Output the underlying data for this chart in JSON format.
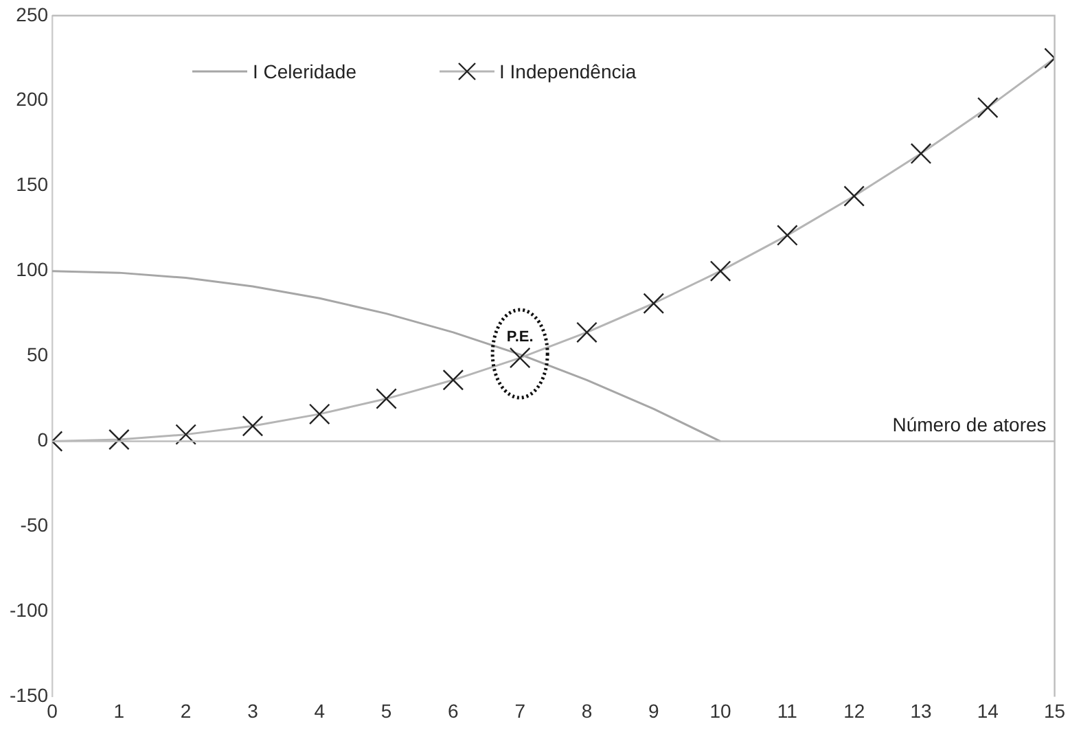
{
  "chart_data": {
    "type": "line",
    "xlabel": "Número de atores",
    "x": [
      0,
      1,
      2,
      3,
      4,
      5,
      6,
      7,
      8,
      9,
      10,
      11,
      12,
      13,
      14,
      15
    ],
    "series": [
      {
        "name": "I Celeridade",
        "color": "#a6a6a6",
        "marker": "none",
        "values": [
          100,
          99,
          96,
          91,
          84,
          75,
          64,
          51,
          36,
          19,
          0,
          null,
          null,
          null,
          null,
          null
        ]
      },
      {
        "name": "I Independência",
        "color": "#b5b5b5",
        "marker": "cross",
        "values": [
          0,
          1,
          4,
          9,
          16,
          25,
          36,
          49,
          64,
          81,
          100,
          121,
          144,
          169,
          196,
          225
        ]
      }
    ],
    "xlim": [
      0,
      15
    ],
    "xticks": [
      0,
      1,
      2,
      3,
      4,
      5,
      6,
      7,
      8,
      9,
      10,
      11,
      12,
      13,
      14,
      15
    ],
    "ylim": [
      -150,
      250
    ],
    "yticks": [
      -150,
      -100,
      -50,
      0,
      50,
      100,
      150,
      200,
      250
    ],
    "legend": "top",
    "annotations": [
      {
        "text": "P.E.",
        "x": 7,
        "y": 49
      }
    ]
  }
}
